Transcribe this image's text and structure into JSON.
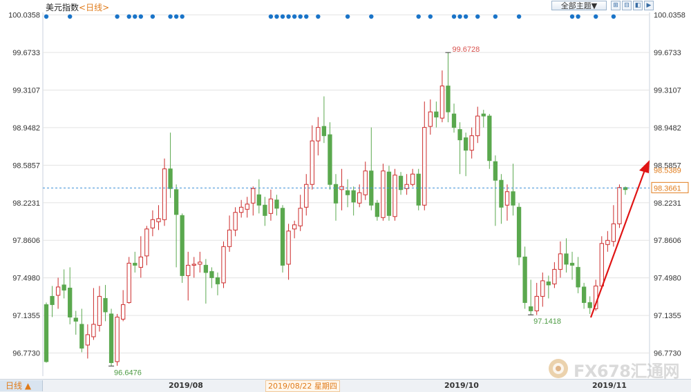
{
  "header": {
    "title": "美元指数",
    "period_tag": "<日线>",
    "theme_select_label": "全部主题▼",
    "tool_buttons": [
      "zoom-in",
      "zoom-out",
      "replay",
      "expand"
    ]
  },
  "footer": {
    "period_button": "日线 ▲",
    "x_labels": [
      "2019/08",
      "2019/10",
      "2019/11"
    ],
    "cursor_date": "2019/08/22 星期四"
  },
  "watermark": {
    "text": "FX678汇通网"
  },
  "chart_data": {
    "type": "candlestick",
    "y_ticks": [
      "100.0358",
      "99.6733",
      "99.3107",
      "98.9482",
      "98.5857",
      "98.2231",
      "97.8606",
      "97.4980",
      "97.1355",
      "96.7730"
    ],
    "ylim": [
      96.55,
      100.06
    ],
    "x_ticks": [
      "2019/08",
      "2019/10",
      "2019/11"
    ],
    "candles": [
      [
        97.24,
        96.69,
        97.26,
        96.68
      ],
      [
        97.32,
        97.24,
        97.42,
        97.12
      ],
      [
        97.33,
        97.41,
        97.5,
        97.2
      ],
      [
        97.43,
        97.38,
        97.58,
        97.3
      ],
      [
        97.4,
        97.12,
        97.6,
        97.05
      ],
      [
        97.11,
        97.08,
        97.18,
        96.95
      ],
      [
        97.05,
        96.82,
        97.2,
        96.78
      ],
      [
        96.85,
        96.95,
        97.05,
        96.72
      ],
      [
        96.93,
        97.05,
        97.4,
        96.9
      ],
      [
        97.04,
        97.32,
        97.42,
        96.98
      ],
      [
        97.3,
        97.17,
        97.43,
        97.08
      ],
      [
        97.15,
        96.68,
        97.2,
        96.65
      ],
      [
        96.69,
        97.12,
        97.15,
        96.65
      ],
      [
        97.1,
        97.24,
        97.38,
        97.08
      ],
      [
        97.26,
        97.64,
        97.7,
        97.25
      ],
      [
        97.64,
        97.62,
        97.75,
        97.55
      ],
      [
        97.6,
        97.7,
        97.9,
        97.5
      ],
      [
        97.71,
        97.97,
        98.0,
        97.62
      ],
      [
        97.98,
        98.06,
        98.15,
        97.9
      ],
      [
        98.04,
        98.07,
        98.2,
        97.96
      ],
      [
        98.06,
        98.55,
        98.65,
        98.0
      ],
      [
        98.55,
        98.36,
        98.9,
        98.27
      ],
      [
        98.35,
        98.11,
        98.4,
        97.6
      ],
      [
        98.1,
        97.52,
        98.12,
        97.45
      ],
      [
        97.52,
        97.62,
        97.75,
        97.28
      ],
      [
        97.62,
        97.63,
        97.7,
        97.5
      ],
      [
        97.63,
        97.65,
        97.75,
        97.55
      ],
      [
        97.62,
        97.55,
        97.68,
        97.25
      ],
      [
        97.56,
        97.5,
        97.6,
        97.4
      ],
      [
        97.5,
        97.44,
        97.55,
        97.33
      ],
      [
        97.45,
        97.8,
        97.85,
        97.4
      ],
      [
        97.8,
        97.96,
        98.1,
        97.75
      ],
      [
        97.96,
        98.13,
        98.18,
        97.9
      ],
      [
        98.13,
        98.18,
        98.25,
        98.08
      ],
      [
        98.16,
        98.21,
        98.28,
        98.08
      ],
      [
        98.22,
        98.36,
        98.38,
        98.1
      ],
      [
        98.3,
        98.2,
        98.45,
        98.12
      ],
      [
        98.2,
        98.1,
        98.28,
        98.0
      ],
      [
        98.12,
        98.26,
        98.35,
        98.05
      ],
      [
        98.25,
        98.17,
        98.3,
        98.1
      ],
      [
        98.17,
        97.62,
        98.2,
        97.55
      ],
      [
        97.63,
        97.95,
        98.02,
        97.48
      ],
      [
        97.97,
        98.01,
        98.05,
        97.88
      ],
      [
        98.0,
        98.17,
        98.3,
        97.95
      ],
      [
        98.18,
        98.4,
        98.5,
        98.1
      ],
      [
        98.4,
        98.82,
        98.97,
        98.35
      ],
      [
        98.82,
        98.95,
        99.05,
        98.68
      ],
      [
        98.96,
        98.87,
        99.25,
        98.8
      ],
      [
        98.88,
        98.4,
        99.0,
        98.35
      ],
      [
        98.4,
        98.22,
        98.5,
        98.05
      ],
      [
        98.35,
        98.38,
        98.55,
        98.15
      ],
      [
        98.34,
        98.3,
        98.45,
        98.18
      ],
      [
        98.34,
        98.23,
        98.38,
        98.1
      ],
      [
        98.22,
        98.32,
        98.4,
        98.18
      ],
      [
        98.3,
        98.53,
        98.62,
        98.25
      ],
      [
        98.53,
        98.2,
        98.95,
        98.15
      ],
      [
        98.22,
        98.09,
        98.25,
        98.05
      ],
      [
        98.08,
        98.53,
        98.6,
        98.05
      ],
      [
        98.52,
        98.1,
        98.58,
        98.05
      ],
      [
        98.09,
        98.49,
        98.55,
        98.05
      ],
      [
        98.48,
        98.35,
        98.52,
        98.3
      ],
      [
        98.36,
        98.4,
        98.5,
        98.3
      ],
      [
        98.4,
        98.5,
        98.55,
        98.38
      ],
      [
        98.5,
        98.2,
        98.55,
        98.15
      ],
      [
        98.2,
        98.95,
        99.2,
        98.15
      ],
      [
        98.96,
        99.1,
        99.22,
        98.88
      ],
      [
        99.1,
        99.05,
        99.2,
        98.95
      ],
      [
        99.04,
        99.35,
        99.5,
        99.0
      ],
      [
        99.35,
        99.1,
        99.67,
        99.0
      ],
      [
        99.08,
        98.95,
        99.18,
        98.9
      ],
      [
        98.93,
        98.83,
        99.0,
        98.5
      ],
      [
        98.85,
        98.73,
        98.9,
        98.48
      ],
      [
        98.73,
        98.87,
        98.95,
        98.65
      ],
      [
        98.87,
        99.06,
        99.15,
        98.8
      ],
      [
        99.08,
        99.06,
        99.12,
        98.95
      ],
      [
        99.06,
        98.63,
        99.08,
        98.55
      ],
      [
        98.62,
        98.44,
        98.68,
        98.0
      ],
      [
        98.44,
        98.18,
        98.5,
        98.02
      ],
      [
        98.2,
        98.33,
        98.4,
        98.05
      ],
      [
        98.33,
        98.2,
        98.6,
        98.1
      ],
      [
        98.18,
        97.7,
        98.22,
        97.62
      ],
      [
        97.7,
        97.26,
        97.8,
        97.2
      ],
      [
        97.22,
        97.18,
        97.48,
        97.14
      ],
      [
        97.18,
        97.32,
        97.45,
        97.14
      ],
      [
        97.32,
        97.47,
        97.55,
        97.22
      ],
      [
        97.46,
        97.43,
        97.52,
        97.3
      ],
      [
        97.44,
        97.58,
        97.65,
        97.4
      ],
      [
        97.58,
        97.73,
        97.85,
        97.5
      ],
      [
        97.73,
        97.63,
        97.88,
        97.55
      ],
      [
        97.64,
        97.62,
        97.75,
        97.48
      ],
      [
        97.6,
        97.41,
        97.7,
        97.35
      ],
      [
        97.41,
        97.26,
        97.45,
        97.2
      ],
      [
        97.26,
        97.21,
        97.32,
        97.15
      ],
      [
        97.2,
        97.42,
        97.48,
        97.18
      ],
      [
        97.42,
        97.83,
        97.9,
        97.4
      ],
      [
        97.82,
        97.86,
        97.95,
        97.75
      ],
      [
        97.85,
        98.02,
        98.2,
        97.8
      ],
      [
        98.02,
        98.37,
        98.4,
        97.98
      ],
      [
        98.37,
        98.35,
        98.38,
        98.3
      ]
    ],
    "annotations": [
      {
        "text": "99.6728",
        "value": 99.6728
      },
      {
        "text": "97.1418",
        "value": 97.1418
      },
      {
        "text": "96.6476",
        "value": 96.6476
      }
    ],
    "last_price_label": "98.3661",
    "last_price": 98.3661,
    "target_label": "98.5389",
    "target": 98.5389,
    "event_marker_count": 32
  },
  "colors": {
    "up": "#cc2a2a",
    "down": "#5aa84e",
    "grid": "#e3e3e3",
    "dashed": "#3a8fd6",
    "arrow": "#e01414",
    "marker_dot": "#1a74c8",
    "accent": "#e07b1a"
  }
}
